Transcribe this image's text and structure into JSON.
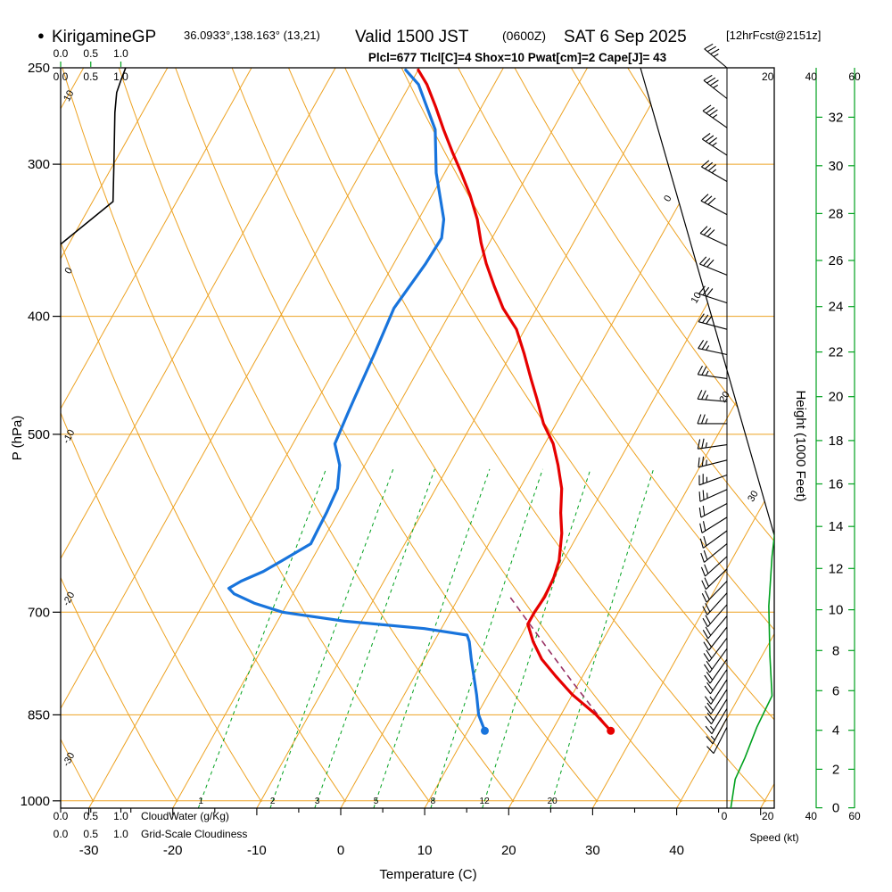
{
  "title": {
    "bullet": "●",
    "station": "KirigamineGP",
    "coords": "36.0933°,138.163° (13,21)",
    "valid": "Valid 1500 JST",
    "valid_z": "(0600Z)",
    "valid_date": "SAT 6 Sep 2025",
    "forecast_tag": "[12hrFcst@2151z]"
  },
  "params_line": "Plcl=677 Tlcl[C]=4 Shox=10 Pwat[cm]=2 Cape[J]= 43",
  "axes": {
    "pressure_label": "P (hPa)",
    "pressure_ticks": [
      250,
      300,
      400,
      500,
      700,
      850,
      1000
    ],
    "temperature_label": "Temperature (C)",
    "temperature_ticks": [
      -30,
      -20,
      -10,
      0,
      10,
      20,
      30,
      40
    ],
    "height_label": "Height (1000 Feet)",
    "height_ticks_kft": [
      0,
      2,
      4,
      6,
      8,
      10,
      12,
      14,
      16,
      18,
      20,
      22,
      24,
      26,
      28,
      30,
      32
    ],
    "speed_label": "Speed (kt)",
    "speed_ticks_top": [
      20,
      40,
      60
    ],
    "speed_ticks_bottom_black": [
      0,
      20
    ],
    "speed_ticks_bottom_green": [
      40,
      60
    ],
    "cloudwater_label": "CloudWater (g/Kg)",
    "cloudiness_label": "Grid-Scale Cloudiness",
    "cloud_scale_values": [
      "0.0",
      "0.5",
      "1.0"
    ],
    "dry_adiabat_labels": [
      10,
      0,
      -10,
      -20,
      -30
    ],
    "isotherm_labels": [
      0,
      10,
      20,
      30
    ],
    "mixing_ratio_labels": [
      1,
      2,
      3,
      5,
      8,
      12,
      20
    ]
  },
  "colors": {
    "grid_orange": "#eda222",
    "green": "#00a11e",
    "temperature_red": "#e60000",
    "dewpoint_blue": "#1874dc",
    "parcel_magenta": "#993366",
    "params_magenta": "#cc0066",
    "black": "#000000"
  },
  "chart_data": {
    "type": "skewt-logp",
    "pressure_top_hpa": 250,
    "pressure_bottom_hpa": 1014,
    "isobar_lines_hpa": [
      300,
      400,
      500,
      700,
      850,
      1000
    ],
    "isotherm_step_c": 10,
    "temperature_profile": [
      [
        876,
        27
      ],
      [
        850,
        24.2
      ],
      [
        818,
        20
      ],
      [
        790,
        16.8
      ],
      [
        765,
        14
      ],
      [
        740,
        11.8
      ],
      [
        716,
        10
      ],
      [
        700,
        10
      ],
      [
        680,
        10.2
      ],
      [
        656,
        10
      ],
      [
        635,
        9.5
      ],
      [
        603,
        8
      ],
      [
        580,
        6.5
      ],
      [
        554,
        5
      ],
      [
        530,
        3
      ],
      [
        509,
        1
      ],
      [
        490,
        -1.5
      ],
      [
        467,
        -4
      ],
      [
        450,
        -6
      ],
      [
        429,
        -8.5
      ],
      [
        410,
        -11
      ],
      [
        394,
        -14
      ],
      [
        378,
        -16.5
      ],
      [
        362,
        -19
      ],
      [
        348,
        -21
      ],
      [
        333,
        -23
      ],
      [
        318,
        -25.5
      ],
      [
        305,
        -28
      ],
      [
        293,
        -30.5
      ],
      [
        281,
        -33
      ],
      [
        269,
        -35.5
      ],
      [
        258,
        -38
      ],
      [
        251,
        -40
      ]
    ],
    "dewpoint_profile": [
      [
        876,
        12
      ],
      [
        850,
        10.2
      ],
      [
        818,
        8.6
      ],
      [
        765,
        5.6
      ],
      [
        740,
        4.2
      ],
      [
        731,
        3.5
      ],
      [
        722,
        -2
      ],
      [
        712,
        -12
      ],
      [
        700,
        -20
      ],
      [
        688,
        -24
      ],
      [
        676,
        -27
      ],
      [
        669,
        -28
      ],
      [
        660,
        -27
      ],
      [
        648,
        -25
      ],
      [
        635,
        -23.5
      ],
      [
        622,
        -22
      ],
      [
        615,
        -21.2
      ],
      [
        600,
        -21.3
      ],
      [
        580,
        -21.4
      ],
      [
        554,
        -21.7
      ],
      [
        530,
        -23
      ],
      [
        509,
        -25
      ],
      [
        480,
        -25.5
      ],
      [
        467,
        -25.7
      ],
      [
        429,
        -26.3
      ],
      [
        394,
        -27
      ],
      [
        362,
        -26.2
      ],
      [
        345,
        -26
      ],
      [
        333,
        -27
      ],
      [
        305,
        -31
      ],
      [
        281,
        -34
      ],
      [
        258,
        -39
      ],
      [
        251,
        -41.5
      ]
    ],
    "parcel_path": [
      [
        876,
        27
      ],
      [
        850,
        24.4
      ],
      [
        800,
        19.3
      ],
      [
        750,
        14
      ],
      [
        700,
        8.4
      ],
      [
        677,
        5.7
      ]
    ],
    "surface_point_hpa": 876,
    "surface_temp_c": 27,
    "surface_dewpoint_c": 12,
    "wind_barbs": [
      [
        250,
        35,
        310
      ],
      [
        265,
        35,
        308
      ],
      [
        280,
        35,
        305
      ],
      [
        295,
        35,
        303
      ],
      [
        310,
        33,
        300
      ],
      [
        330,
        32,
        298
      ],
      [
        350,
        30,
        295
      ],
      [
        370,
        30,
        292
      ],
      [
        390,
        28,
        288
      ],
      [
        410,
        28,
        285
      ],
      [
        430,
        27,
        282
      ],
      [
        450,
        26,
        278
      ],
      [
        470,
        26,
        275
      ],
      [
        490,
        25,
        270
      ],
      [
        510,
        24,
        262
      ],
      [
        525,
        24,
        256
      ],
      [
        540,
        23,
        250
      ],
      [
        555,
        23,
        246
      ],
      [
        570,
        22,
        242
      ],
      [
        585,
        22,
        238
      ],
      [
        600,
        21,
        234
      ],
      [
        615,
        21,
        231
      ],
      [
        630,
        20,
        228
      ],
      [
        645,
        20,
        226
      ],
      [
        660,
        19,
        224
      ],
      [
        675,
        19,
        222
      ],
      [
        690,
        19,
        221
      ],
      [
        705,
        19,
        220
      ],
      [
        720,
        20,
        218
      ],
      [
        735,
        20,
        217
      ],
      [
        750,
        20,
        216
      ],
      [
        765,
        19,
        215
      ],
      [
        780,
        18,
        214
      ],
      [
        795,
        15,
        213
      ],
      [
        810,
        21,
        213
      ],
      [
        825,
        20,
        212
      ],
      [
        840,
        17,
        211
      ],
      [
        855,
        13,
        209
      ],
      [
        870,
        8,
        207
      ]
    ],
    "wind_speed_profile": [
      [
        253,
        31
      ],
      [
        300,
        33
      ],
      [
        360,
        34
      ],
      [
        420,
        31
      ],
      [
        470,
        28
      ],
      [
        566,
        25
      ],
      [
        630,
        22
      ],
      [
        692,
        20.5
      ],
      [
        760,
        21
      ],
      [
        820,
        22
      ],
      [
        870,
        15
      ],
      [
        922,
        9.5
      ],
      [
        960,
        5
      ],
      [
        1014,
        3
      ]
    ],
    "cloudiness_profile": [
      [
        349,
        0
      ],
      [
        322,
        0.87
      ],
      [
        300,
        0.885
      ],
      [
        272,
        0.9
      ],
      [
        262,
        0.93
      ],
      [
        256,
        1.0
      ],
      [
        250,
        1.08
      ]
    ]
  }
}
